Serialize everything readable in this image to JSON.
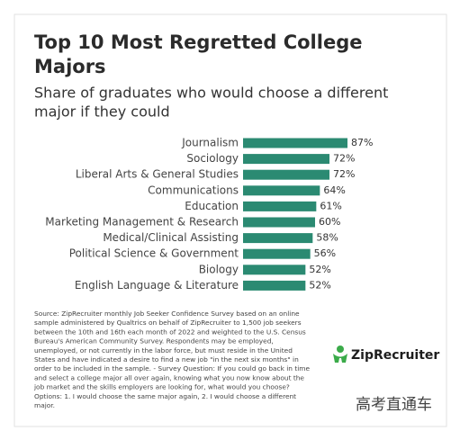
{
  "chart_data": {
    "type": "bar",
    "orientation": "horizontal",
    "title": [
      "Top 10 Most Regretted College",
      "Majors"
    ],
    "subtitle": [
      "Share of graduates who would choose a different",
      "major if they could"
    ],
    "categories": [
      "Journalism",
      "Sociology",
      "Liberal Arts & General Studies",
      "Communications",
      "Education",
      "Marketing Management & Research",
      "Medical/Clinical Assisting",
      "Political Science & Government",
      "Biology",
      "English Language & Literature"
    ],
    "values": [
      87,
      72,
      72,
      64,
      61,
      60,
      58,
      56,
      52,
      52
    ],
    "value_labels": [
      "87%",
      "72%",
      "72%",
      "64%",
      "61%",
      "60%",
      "58%",
      "56%",
      "52%",
      "52%"
    ],
    "color": "#2b8a72",
    "source": [
      "Source: ZipRecruiter monthly Job Seeker Confidence Survey based on an online",
      "sample administered by Qualtrics on behalf of ZipRecruiter to 1,500 job seekers",
      "between the 10th and 16th each month of 2022 and weighted to the U.S. Census",
      "Bureau's American Community Survey. Respondents may be employed,",
      "unemployed, or not currently in the labor force, but must reside in the United",
      "States and have indicated a desire to find a new job \"in the next six months\" in",
      "order to be included in the sample. - Survey Question: If you could go back in time",
      "and select a college major all over again, knowing what you now know about the",
      "job market and the skills employers are looking for, what would you choose?",
      "Options: 1. I would choose the same major again, 2. I would choose a different",
      "major."
    ],
    "logo": "ZipRecruiter",
    "watermark": "高考直通车"
  }
}
